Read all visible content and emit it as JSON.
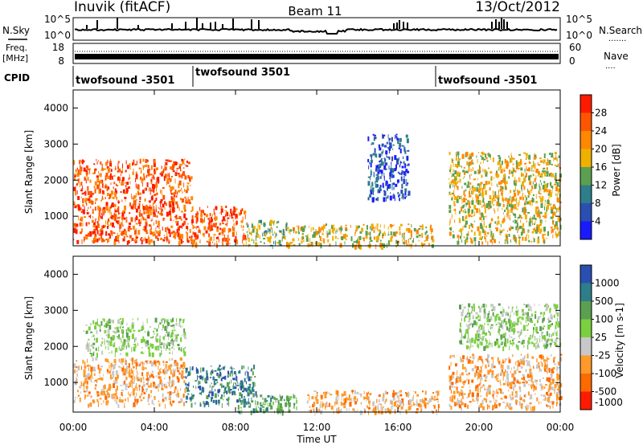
{
  "header": {
    "station": "Inuvik (fitACF)",
    "beam": "Beam 11",
    "date": "13/Oct/2012"
  },
  "nsky_panel": {
    "left_label": "N.Sky",
    "right_label": "N.Search",
    "right_dots": ".......",
    "ticks": [
      "10^5",
      "10^0"
    ]
  },
  "freq_panel": {
    "left_label_line1": "Freq.",
    "left_label_line2": "[MHz]",
    "right_label": "Nave",
    "right_dots": "....",
    "left_ticks": [
      "18",
      "8"
    ],
    "right_ticks": [
      "60",
      "0"
    ]
  },
  "cpid_panel": {
    "label": "CPID",
    "segments": [
      "twofsound -3501",
      "twofsound 3501",
      "twofsound -3501"
    ]
  },
  "x_axis": {
    "title": "Time UT",
    "ticks": [
      "00:00",
      "04:00",
      "08:00",
      "12:00",
      "16:00",
      "20:00",
      "00:00"
    ]
  },
  "power_panel": {
    "ylabel": "Slant Range [km]",
    "yticks": [
      "1000",
      "2000",
      "3000",
      "4000"
    ],
    "colorbar_label": "Power [dB]",
    "colorbar_ticks": [
      "4",
      "8",
      "12",
      "16",
      "20",
      "24",
      "28"
    ]
  },
  "velocity_panel": {
    "ylabel": "Slant Range [km]",
    "yticks": [
      "1000",
      "2000",
      "3000",
      "4000"
    ],
    "colorbar_label": "Velocity [m s-1]",
    "colorbar_ticks": [
      "1000",
      "500",
      "100",
      "25",
      "-25",
      "-100",
      "-500",
      "-1000"
    ]
  },
  "chart_data": [
    {
      "type": "heatmap",
      "title": "Power",
      "x": [
        "00:00",
        "04:00",
        "08:00",
        "12:00",
        "16:00",
        "20:00",
        "00:00"
      ],
      "xlabel": "Time UT",
      "ylabel": "Slant Range [km]",
      "ylim": [
        180,
        4500
      ],
      "colorbar": {
        "label": "Power [dB]",
        "range": [
          0,
          32
        ],
        "ticks": [
          4,
          8,
          12,
          16,
          20,
          24,
          28
        ],
        "colors": [
          "#1a1aff",
          "#2a4fb0",
          "#2e7d8a",
          "#5aa050",
          "#f0b000",
          "#ff8800",
          "#ff5500",
          "#ff1a00"
        ]
      },
      "regions": [
        {
          "t": [
            0.0,
            5.8
          ],
          "r": [
            300,
            2600
          ],
          "value": 28
        },
        {
          "t": [
            5.8,
            8.5
          ],
          "r": [
            200,
            1300
          ],
          "value": 26
        },
        {
          "t": [
            8.5,
            10.5
          ],
          "r": [
            200,
            900
          ],
          "value": 14
        },
        {
          "t": [
            10.5,
            17.7
          ],
          "r": [
            200,
            800
          ],
          "value": 18
        },
        {
          "t": [
            18.5,
            24.0
          ],
          "r": [
            300,
            2800
          ],
          "value": 20
        },
        {
          "t": [
            14.5,
            16.5
          ],
          "r": [
            1500,
            3300
          ],
          "value": 8
        }
      ]
    },
    {
      "type": "heatmap",
      "title": "Velocity",
      "x": [
        "00:00",
        "04:00",
        "08:00",
        "12:00",
        "16:00",
        "20:00",
        "00:00"
      ],
      "xlabel": "Time UT",
      "ylabel": "Slant Range [km]",
      "ylim": [
        180,
        4500
      ],
      "colorbar": {
        "label": "Velocity [m s-1]",
        "ticks": [
          1000,
          500,
          100,
          25,
          -25,
          -100,
          -500,
          -1000
        ],
        "colors": [
          "#2a4fb0",
          "#2e7d8a",
          "#5aa050",
          "#7bd040",
          "#c8c8c8",
          "#ff9a2a",
          "#ff6a00",
          "#ff1a00"
        ]
      },
      "regions": [
        {
          "t": [
            0.0,
            5.5
          ],
          "r": [
            400,
            1700
          ],
          "value": -300
        },
        {
          "t": [
            0.5,
            5.5
          ],
          "r": [
            1800,
            2800
          ],
          "value": 0
        },
        {
          "t": [
            5.5,
            9.0
          ],
          "r": [
            400,
            1500
          ],
          "value": 300
        },
        {
          "t": [
            8.0,
            11.0
          ],
          "r": [
            200,
            700
          ],
          "value": 100
        },
        {
          "t": [
            11.5,
            18.0
          ],
          "r": [
            200,
            800
          ],
          "value": -200
        },
        {
          "t": [
            18.5,
            24.0
          ],
          "r": [
            300,
            1800
          ],
          "value": -250
        },
        {
          "t": [
            19.0,
            24.0
          ],
          "r": [
            2000,
            3200
          ],
          "value": 0
        }
      ]
    }
  ]
}
